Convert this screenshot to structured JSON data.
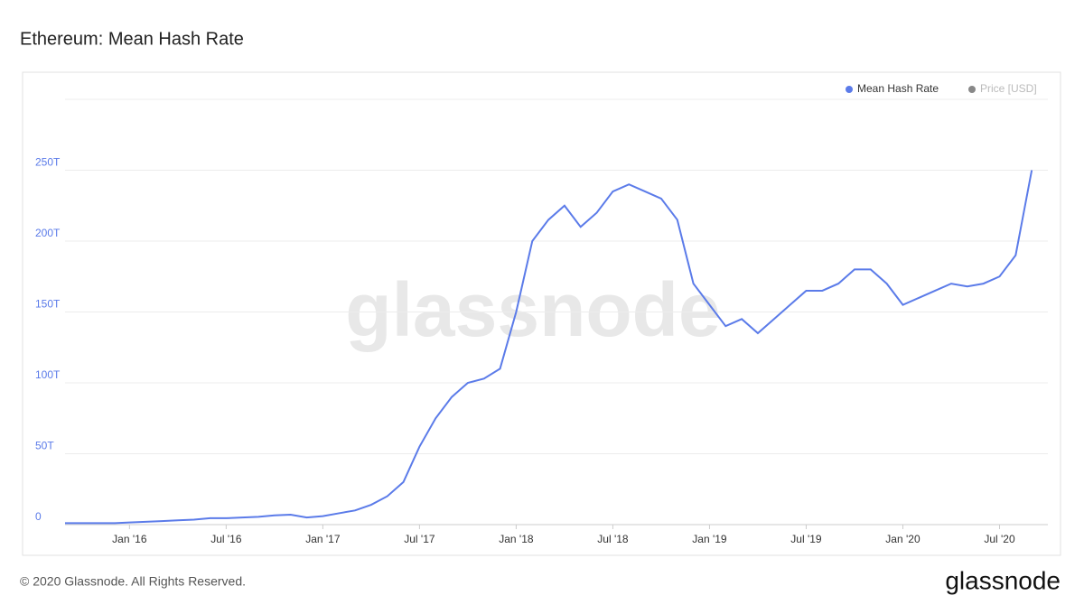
{
  "chart_data": {
    "type": "line",
    "title": "Ethereum: Mean Hash Rate",
    "watermark": "glassnode",
    "x": [
      "2015-09",
      "2015-10",
      "2015-11",
      "2015-12",
      "2016-01",
      "2016-02",
      "2016-03",
      "2016-04",
      "2016-05",
      "2016-06",
      "2016-07",
      "2016-08",
      "2016-09",
      "2016-10",
      "2016-11",
      "2016-12",
      "2017-01",
      "2017-02",
      "2017-03",
      "2017-04",
      "2017-05",
      "2017-06",
      "2017-07",
      "2017-08",
      "2017-09",
      "2017-10",
      "2017-11",
      "2017-12",
      "2018-01",
      "2018-02",
      "2018-03",
      "2018-04",
      "2018-05",
      "2018-06",
      "2018-07",
      "2018-08",
      "2018-09",
      "2018-10",
      "2018-11",
      "2018-12",
      "2019-01",
      "2019-02",
      "2019-03",
      "2019-04",
      "2019-05",
      "2019-06",
      "2019-07",
      "2019-08",
      "2019-09",
      "2019-10",
      "2019-11",
      "2019-12",
      "2020-01",
      "2020-02",
      "2020-03",
      "2020-04",
      "2020-05",
      "2020-06",
      "2020-07",
      "2020-08",
      "2020-09"
    ],
    "series": [
      {
        "name": "Mean Hash Rate",
        "color": "#5b7be9",
        "values": [
          1,
          1,
          1,
          1,
          1.5,
          2,
          2.5,
          3,
          3.5,
          4.5,
          4.5,
          5,
          5.5,
          6.5,
          7,
          5,
          6,
          8,
          10,
          14,
          20,
          30,
          55,
          75,
          90,
          100,
          103,
          110,
          150,
          200,
          215,
          225,
          210,
          220,
          235,
          240,
          235,
          230,
          215,
          170,
          155,
          140,
          145,
          135,
          145,
          155,
          165,
          165,
          170,
          180,
          180,
          170,
          155,
          160,
          165,
          170,
          168,
          170,
          175,
          190,
          250
        ]
      }
    ],
    "hidden_series": [
      {
        "name": "Price [USD]",
        "color": "#888888"
      }
    ],
    "xlim": [
      "2015-09",
      "2020-10"
    ],
    "xticks": [
      {
        "value": "2016-01",
        "label": "Jan '16"
      },
      {
        "value": "2016-07",
        "label": "Jul '16"
      },
      {
        "value": "2017-01",
        "label": "Jan '17"
      },
      {
        "value": "2017-07",
        "label": "Jul '17"
      },
      {
        "value": "2018-01",
        "label": "Jan '18"
      },
      {
        "value": "2018-07",
        "label": "Jul '18"
      },
      {
        "value": "2019-01",
        "label": "Jan '19"
      },
      {
        "value": "2019-07",
        "label": "Jul '19"
      },
      {
        "value": "2020-01",
        "label": "Jan '20"
      },
      {
        "value": "2020-07",
        "label": "Jul '20"
      }
    ],
    "ylim": [
      0,
      300
    ],
    "yticks": [
      0,
      {
        "value": 50,
        "label": "50T"
      },
      {
        "value": 100,
        "label": "100T"
      },
      {
        "value": 150,
        "label": "150T"
      },
      {
        "value": 200,
        "label": "200T"
      },
      {
        "value": 250,
        "label": "250T"
      },
      {
        "value": 300,
        "label": ""
      }
    ],
    "grid": true
  },
  "footer": {
    "copyright": "© 2020 Glassnode. All Rights Reserved.",
    "logo": "glassnode"
  }
}
